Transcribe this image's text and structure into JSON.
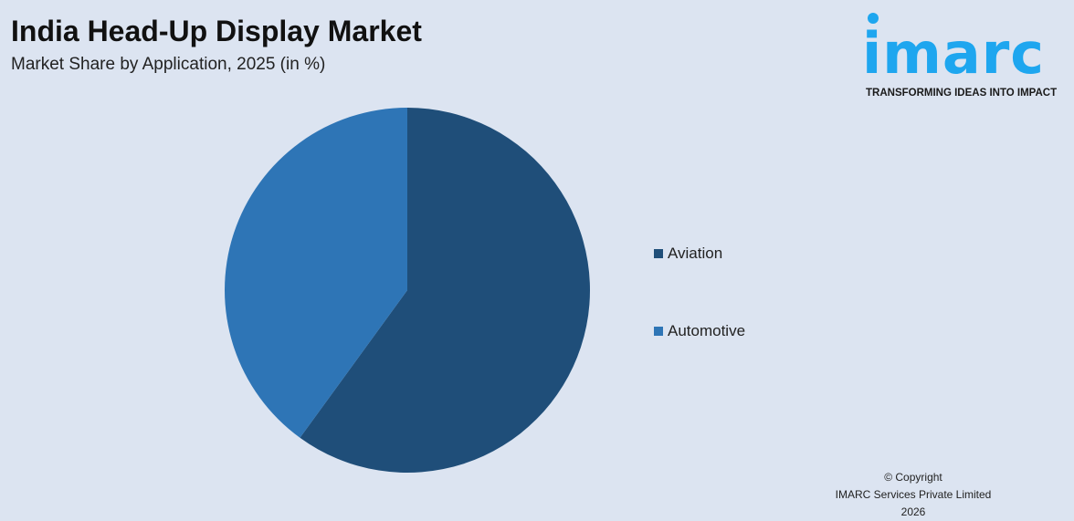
{
  "header": {
    "title": "India Head-Up Display Market",
    "subtitle": "Market Share by Application, 2025 (in %)"
  },
  "logo": {
    "word": "imarc",
    "tagline": "TRANSFORMING IDEAS INTO IMPACT",
    "color": "#1ea6ef"
  },
  "chart_data": {
    "type": "pie",
    "title": "India Head-Up Display Market",
    "subtitle": "Market Share by Application, 2025 (in %)",
    "categories": [
      "Aviation",
      "Automotive"
    ],
    "values": [
      60,
      40
    ],
    "colors": [
      "#1f4e79",
      "#2e75b6"
    ],
    "legend_position": "right",
    "start_angle": "12 o'clock, clockwise"
  },
  "footer": {
    "copyright": "© Copyright",
    "company": "IMARC Services Private Limited 2026"
  }
}
